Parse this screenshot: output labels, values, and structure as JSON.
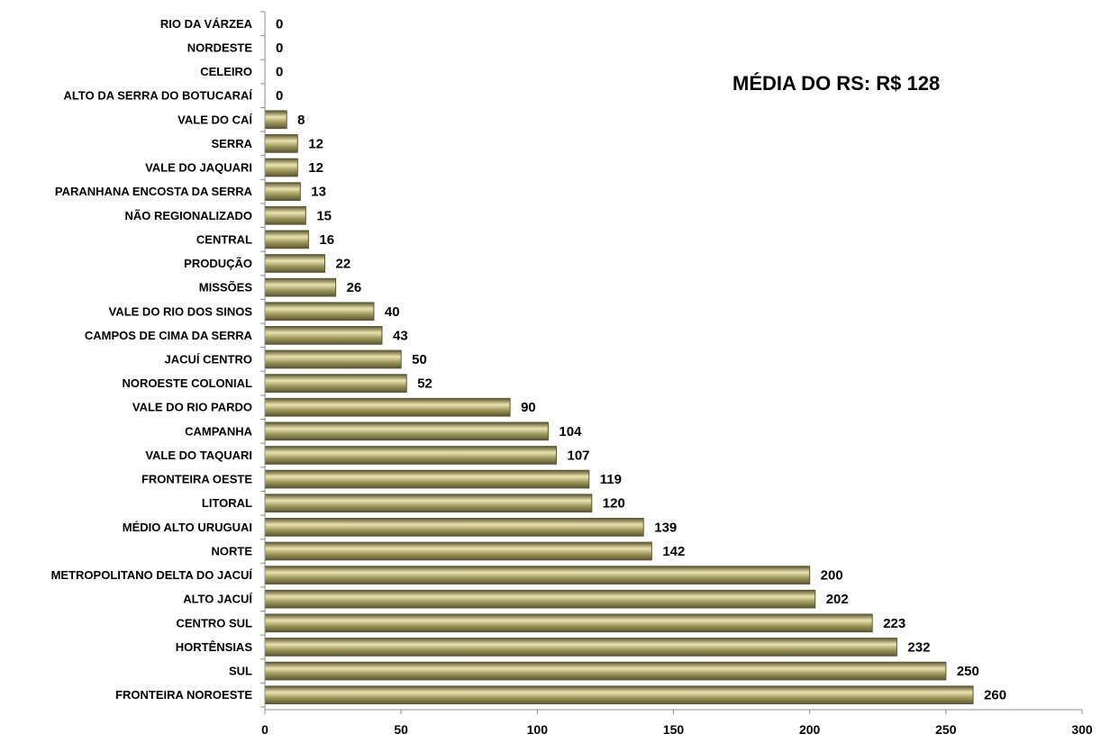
{
  "chart_data": {
    "type": "bar",
    "orientation": "horizontal",
    "categories": [
      "RIO DA VÁRZEA",
      "NORDESTE",
      "CELEIRO",
      "ALTO DA SERRA DO BOTUCARAÍ",
      "VALE DO CAÍ",
      "SERRA",
      "VALE DO JAQUARI",
      "PARANHANA ENCOSTA DA SERRA",
      "NÃO REGIONALIZADO",
      "CENTRAL",
      "PRODUÇÃO",
      "MISSÕES",
      "VALE DO RIO DOS SINOS",
      "CAMPOS DE CIMA DA SERRA",
      "JACUÍ CENTRO",
      "NOROESTE COLONIAL",
      "VALE DO RIO PARDO",
      "CAMPANHA",
      "VALE DO TAQUARI",
      "FRONTEIRA OESTE",
      "LITORAL",
      "MÉDIO ALTO URUGUAI",
      "NORTE",
      "METROPOLITANO DELTA DO JACUÍ",
      "ALTO JACUÍ",
      "CENTRO SUL",
      "HORTÊNSIAS",
      "SUL",
      "FRONTEIRA NOROESTE"
    ],
    "values": [
      0,
      0,
      0,
      0,
      8,
      12,
      12,
      13,
      15,
      16,
      22,
      26,
      40,
      43,
      50,
      52,
      90,
      104,
      107,
      119,
      120,
      139,
      142,
      200,
      202,
      223,
      232,
      250,
      260
    ],
    "value_labels": [
      "0",
      "0",
      "0",
      "0",
      "8",
      "12",
      "12",
      "13",
      "15",
      "16",
      "22",
      "26",
      "40",
      "43",
      "50",
      "52",
      "90",
      "104",
      "107",
      "119",
      "120",
      "139",
      "142",
      "200",
      "202",
      "223",
      "232",
      "250",
      "260"
    ],
    "xlim": [
      0,
      300
    ],
    "xticks": [
      "0",
      "50",
      "100",
      "150",
      "200",
      "250",
      "300"
    ],
    "xtick_values": [
      0,
      50,
      100,
      150,
      200,
      250,
      300
    ],
    "annotation": "MÉDIA DO RS: R$ 128",
    "annotation_placement": "top-right",
    "grid": false,
    "legend": false,
    "bar_color": "#a09a5e",
    "bar_highlight_color": "#ece3b0",
    "bar_shadow_color": "#5a5632",
    "axis_color": "#8c8c8c"
  }
}
